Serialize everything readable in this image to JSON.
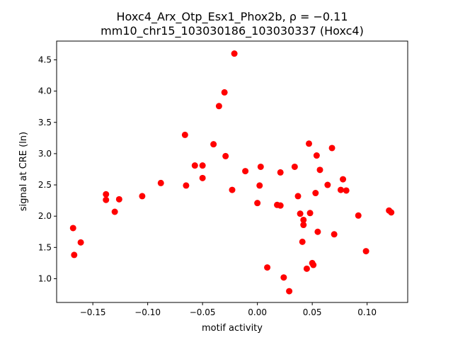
{
  "chart_data": {
    "type": "scatter",
    "title_line1": "Hoxc4_Arx_Otp_Esx1_Phox2b, ρ = −0.11",
    "title_line2": "mm10_chr15_103030186_103030337 (Hoxc4)",
    "xlabel": "motif activity",
    "ylabel": "signal at CRE (ln)",
    "xlim": [
      -0.183,
      0.137
    ],
    "ylim": [
      0.62,
      4.8
    ],
    "xticks": [
      -0.15,
      -0.1,
      -0.05,
      0.0,
      0.05,
      0.1
    ],
    "xtick_labels": [
      "−0.15",
      "−0.10",
      "−0.05",
      "0.00",
      "0.05",
      "0.10"
    ],
    "yticks": [
      1.0,
      1.5,
      2.0,
      2.5,
      3.0,
      3.5,
      4.0,
      4.5
    ],
    "ytick_labels": [
      "1.0",
      "1.5",
      "2.0",
      "2.5",
      "3.0",
      "3.5",
      "4.0",
      "4.5"
    ],
    "grid": false,
    "marker_color": "#ff0000",
    "points": [
      [
        -0.168,
        1.81
      ],
      [
        -0.167,
        1.38
      ],
      [
        -0.161,
        1.58
      ],
      [
        -0.138,
        2.35
      ],
      [
        -0.138,
        2.26
      ],
      [
        -0.13,
        2.07
      ],
      [
        -0.126,
        2.27
      ],
      [
        -0.105,
        2.32
      ],
      [
        -0.088,
        2.53
      ],
      [
        -0.066,
        3.3
      ],
      [
        -0.065,
        2.49
      ],
      [
        -0.057,
        2.81
      ],
      [
        -0.05,
        2.81
      ],
      [
        -0.05,
        2.61
      ],
      [
        -0.04,
        3.15
      ],
      [
        -0.035,
        3.76
      ],
      [
        -0.03,
        3.98
      ],
      [
        -0.029,
        2.96
      ],
      [
        -0.023,
        2.42
      ],
      [
        -0.021,
        4.6
      ],
      [
        -0.011,
        2.72
      ],
      [
        0.0,
        2.21
      ],
      [
        0.002,
        2.49
      ],
      [
        0.003,
        2.79
      ],
      [
        0.009,
        1.18
      ],
      [
        0.018,
        2.18
      ],
      [
        0.021,
        2.17
      ],
      [
        0.021,
        2.7
      ],
      [
        0.024,
        1.02
      ],
      [
        0.029,
        0.8
      ],
      [
        0.034,
        2.79
      ],
      [
        0.037,
        2.32
      ],
      [
        0.039,
        2.04
      ],
      [
        0.041,
        1.59
      ],
      [
        0.042,
        1.86
      ],
      [
        0.042,
        1.94
      ],
      [
        0.045,
        1.16
      ],
      [
        0.047,
        3.16
      ],
      [
        0.048,
        2.05
      ],
      [
        0.05,
        1.25
      ],
      [
        0.051,
        1.22
      ],
      [
        0.053,
        2.37
      ],
      [
        0.054,
        2.97
      ],
      [
        0.055,
        1.75
      ],
      [
        0.057,
        2.74
      ],
      [
        0.064,
        2.5
      ],
      [
        0.068,
        3.09
      ],
      [
        0.07,
        1.71
      ],
      [
        0.076,
        2.42
      ],
      [
        0.078,
        2.59
      ],
      [
        0.081,
        2.41
      ],
      [
        0.092,
        2.01
      ],
      [
        0.099,
        1.44
      ],
      [
        0.12,
        2.09
      ],
      [
        0.122,
        2.06
      ]
    ]
  }
}
